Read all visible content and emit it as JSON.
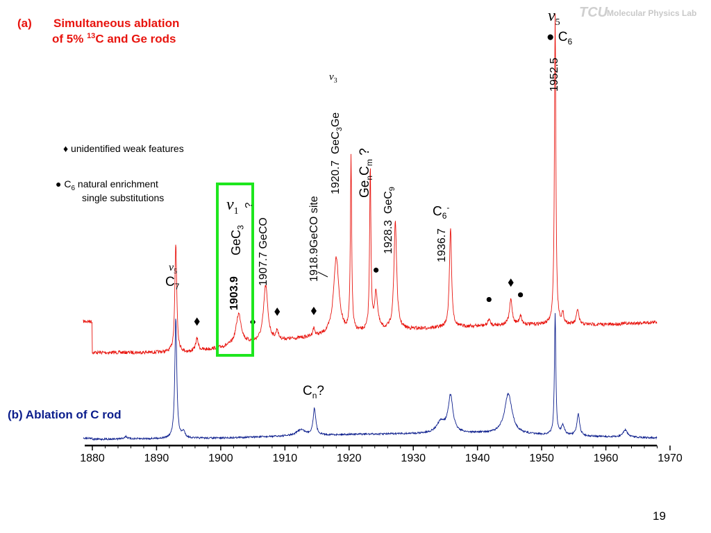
{
  "slide": {
    "panel_a": {
      "letter": "(a)",
      "line1": "Simultaneous ablation",
      "line2_prefix": "of  5% ",
      "line2_sup": "13",
      "line2_suffix": "C and Ge rods"
    },
    "panel_b": "(b) Ablation of C rod",
    "logo_letters": "TCU",
    "logo_text": "Molecular Physics Lab",
    "page_number": "19",
    "legend": {
      "diamond_text": "♦ unidentified weak features",
      "dot_text_prefix": "● C",
      "dot_text_sub": "6",
      "dot_text_suffix": " natural enrichment",
      "dot_text_line2": "single substitutions"
    },
    "colors": {
      "spectrum_a": "#e8140e",
      "spectrum_b": "#0b1d8c",
      "highlight_box": "#1ee61e",
      "axis": "#000000"
    }
  },
  "chart_data": {
    "type": "line",
    "xlabel": "",
    "ylabel": "",
    "xlim": [
      1880,
      1970
    ],
    "x_ticks": [
      "1880",
      "1890",
      "1900",
      "1910",
      "1920",
      "1930",
      "1940",
      "1950",
      "1960",
      "1970"
    ],
    "series": [
      {
        "name": "",
        "color": "#e8140e",
        "baseline": [
          [
            1880,
            0.0
          ],
          [
            1895,
            0.0
          ],
          [
            1905,
            0.03
          ],
          [
            1915,
            0.05
          ],
          [
            1925,
            0.07
          ],
          [
            1935,
            0.08
          ],
          [
            1945,
            0.09
          ],
          [
            1960,
            0.09
          ],
          [
            1970,
            0.1
          ]
        ],
        "peaks": [
          {
            "x": 1893.0,
            "h": 0.35,
            "w": 0.18
          },
          {
            "x": 1896.3,
            "h": 0.04,
            "w": 0.25
          },
          {
            "x": 1902.8,
            "h": 0.1,
            "w": 0.5
          },
          {
            "x": 1907.0,
            "h": 0.18,
            "w": 0.4
          },
          {
            "x": 1908.8,
            "h": 0.03,
            "w": 0.2
          },
          {
            "x": 1914.5,
            "h": 0.025,
            "w": 0.2
          },
          {
            "x": 1918.0,
            "h": 0.25,
            "w": 0.5
          },
          {
            "x": 1920.3,
            "h": 0.56,
            "w": 0.12
          },
          {
            "x": 1923.3,
            "h": 0.53,
            "w": 0.12
          },
          {
            "x": 1924.2,
            "h": 0.12,
            "w": 0.3
          },
          {
            "x": 1927.2,
            "h": 0.35,
            "w": 0.25
          },
          {
            "x": 1935.8,
            "h": 0.32,
            "w": 0.2
          },
          {
            "x": 1941.8,
            "h": 0.02,
            "w": 0.2
          },
          {
            "x": 1945.2,
            "h": 0.08,
            "w": 0.25
          },
          {
            "x": 1946.7,
            "h": 0.03,
            "w": 0.2
          },
          {
            "x": 1952.1,
            "h": 1.0,
            "w": 0.13
          },
          {
            "x": 1953.3,
            "h": 0.03,
            "w": 0.2
          },
          {
            "x": 1955.6,
            "h": 0.05,
            "w": 0.2
          }
        ]
      },
      {
        "name": "",
        "color": "#0b1d8c",
        "baseline": [
          [
            1880,
            0.0
          ],
          [
            1900,
            0.01
          ],
          [
            1920,
            0.04
          ],
          [
            1940,
            0.05
          ],
          [
            1960,
            0.02
          ],
          [
            1970,
            0.01
          ]
        ],
        "peaks": [
          {
            "x": 1885.2,
            "h": 0.02,
            "w": 0.3
          },
          {
            "x": 1893.0,
            "h": 1.0,
            "w": 0.18
          },
          {
            "x": 1894.2,
            "h": 0.05,
            "w": 0.3
          },
          {
            "x": 1912.5,
            "h": 0.05,
            "w": 0.8
          },
          {
            "x": 1914.6,
            "h": 0.22,
            "w": 0.25
          },
          {
            "x": 1934.3,
            "h": 0.09,
            "w": 0.8
          },
          {
            "x": 1935.8,
            "h": 0.3,
            "w": 0.45
          },
          {
            "x": 1944.8,
            "h": 0.33,
            "w": 0.7
          },
          {
            "x": 1952.1,
            "h": 1.0,
            "w": 0.13
          },
          {
            "x": 1953.3,
            "h": 0.08,
            "w": 0.3
          },
          {
            "x": 1955.7,
            "h": 0.18,
            "w": 0.25
          },
          {
            "x": 1963.0,
            "h": 0.06,
            "w": 0.4
          }
        ]
      }
    ],
    "markers": {
      "diamond_x": [
        1896.3,
        1905.0,
        1908.8,
        1914.5,
        1945.2
      ],
      "dot_x": [
        1924.2,
        1941.8,
        1946.7
      ]
    },
    "annotations": {
      "c7": {
        "nu": "ν",
        "nu_sub": "5",
        "label": "C",
        "label_sub": "7"
      },
      "c6": {
        "nu": "ν",
        "nu_sub": "5",
        "label": "● C",
        "label_sub": "6",
        "freq": "1952.5"
      },
      "gec3": {
        "nu": "ν",
        "nu_sub": "1",
        "q": "?",
        "freq": "1903.9",
        "label": "GeC",
        "label_sub": "3"
      },
      "geco1907": "1907.7 GeCO",
      "geco1918": "1918.9GeCO site",
      "gec3ge": {
        "nu": "ν",
        "nu_sub": "3",
        "freq": "1920.7",
        "label": "GeC",
        "label_sub": "3",
        "label_end": "Ge"
      },
      "gencm": {
        "a": "Ge",
        "n": "n",
        "b": "C",
        "m": "m",
        "q": "?"
      },
      "gec9": {
        "freq": "1928.3",
        "label": "GeC",
        "label_sub": "9"
      },
      "c6m": {
        "label": "C",
        "label_sub": "6",
        "charge": "-",
        "freq": "1936.7"
      },
      "cn": {
        "label": "C",
        "label_sub": "n",
        "q": "?"
      }
    }
  }
}
